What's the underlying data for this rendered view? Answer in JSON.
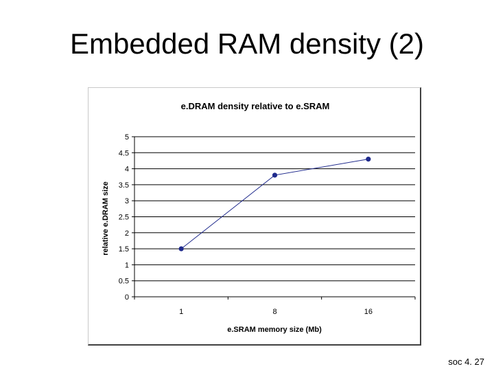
{
  "slide": {
    "title": "Embedded RAM density (2)",
    "footer": "soc 4. 27"
  },
  "chart_data": {
    "type": "line",
    "title": "e.DRAM density relative to e.SRAM",
    "xlabel": "e.SRAM memory size (Mb)",
    "ylabel": "relative e.DRAM size",
    "categories": [
      "1",
      "8",
      "16"
    ],
    "series": [
      {
        "values": [
          1.5,
          3.8,
          4.3
        ]
      }
    ],
    "ylim": [
      0,
      5
    ],
    "yticks": [
      "0",
      "0.5",
      "1",
      "1.5",
      "2",
      "2.5",
      "3",
      "3.5",
      "4",
      "4.5",
      "5"
    ],
    "grid": true,
    "legend": "none",
    "line_color": "#1f2a8c"
  }
}
